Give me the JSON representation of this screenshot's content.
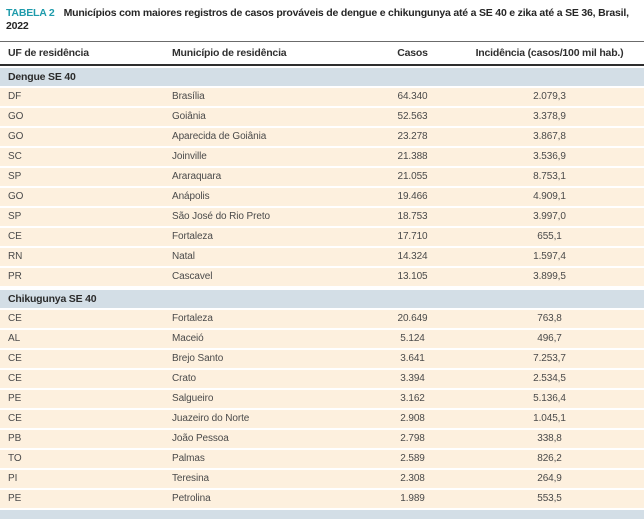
{
  "title": {
    "label": "TABELA 2",
    "text": "Municípios com maiores registros de casos prováveis de dengue e chikungunya até a SE 40 e zika até a SE 36, Brasil, 2022"
  },
  "table": {
    "columns": [
      "UF de residência",
      "Município de residência",
      "Casos",
      "Incidência (casos/100 mil hab.)"
    ],
    "sections": [
      {
        "header": "Dengue SE 40",
        "rows": [
          [
            "DF",
            "Brasília",
            "64.340",
            "2.079,3"
          ],
          [
            "GO",
            "Goiânia",
            "52.563",
            "3.378,9"
          ],
          [
            "GO",
            "Aparecida de Goiânia",
            "23.278",
            "3.867,8"
          ],
          [
            "SC",
            "Joinville",
            "21.388",
            "3.536,9"
          ],
          [
            "SP",
            "Araraquara",
            "21.055",
            "8.753,1"
          ],
          [
            "GO",
            "Anápolis",
            "19.466",
            "4.909,1"
          ],
          [
            "SP",
            "São José do Rio Preto",
            "18.753",
            "3.997,0"
          ],
          [
            "CE",
            "Fortaleza",
            "17.710",
            "655,1"
          ],
          [
            "RN",
            "Natal",
            "14.324",
            "1.597,4"
          ],
          [
            "PR",
            "Cascavel",
            "13.105",
            "3.899,5"
          ]
        ]
      },
      {
        "header": "Chikugunya SE 40",
        "rows": [
          [
            "CE",
            "Fortaleza",
            "20.649",
            "763,8"
          ],
          [
            "AL",
            "Maceió",
            "5.124",
            "496,7"
          ],
          [
            "CE",
            "Brejo Santo",
            "3.641",
            "7.253,7"
          ],
          [
            "CE",
            "Crato",
            "3.394",
            "2.534,5"
          ],
          [
            "PE",
            "Salgueiro",
            "3.162",
            "5.136,4"
          ],
          [
            "CE",
            "Juazeiro do Norte",
            "2.908",
            "1.045,1"
          ],
          [
            "PB",
            "João Pessoa",
            "2.798",
            "338,8"
          ],
          [
            "TO",
            "Palmas",
            "2.589",
            "826,2"
          ],
          [
            "PI",
            "Teresina",
            "2.308",
            "264,9"
          ],
          [
            "PE",
            "Petrolina",
            "1.989",
            "553,5"
          ]
        ]
      }
    ]
  },
  "colors": {
    "accent_teal": "#1e9bab",
    "section_band": "#d3dee6",
    "row_bg": "#fdf0de",
    "rule_dark": "#2e2e2e",
    "text_dark": "#262626",
    "text_cell": "#4a4a4a"
  }
}
